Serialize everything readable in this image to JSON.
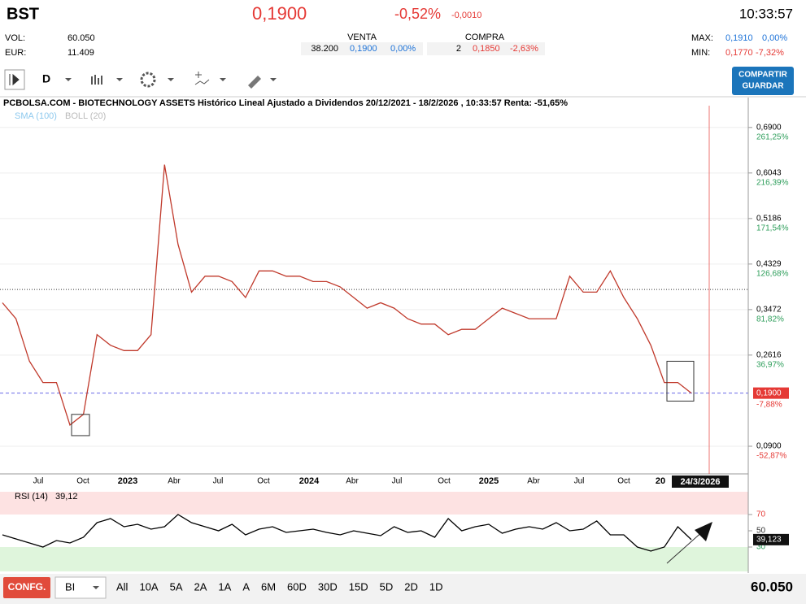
{
  "header": {
    "symbol": "BST",
    "price": "0,1900",
    "change_pct": "-0,52%",
    "change_abs": "-0,0010",
    "time": "10:33:57"
  },
  "stats": {
    "vol_label": "VOL:",
    "vol": "60.050",
    "eur_label": "EUR:",
    "eur": "11.409"
  },
  "venta": {
    "label": "VENTA",
    "qty": "38.200",
    "price": "0,1900",
    "pct": "0,00%"
  },
  "compra": {
    "label": "COMPRA",
    "qty": "2",
    "price": "0,1850",
    "pct": "-2,63%"
  },
  "max": {
    "label": "MAX:",
    "value": "0,1910",
    "pct": "0,00%"
  },
  "min": {
    "label": "MIN:",
    "value": "0,1770",
    "pct": "-7,32%"
  },
  "toolbar": {
    "period": "D",
    "share": "COMPARTIR",
    "save": "GUARDAR"
  },
  "chart_data": [
    {
      "type": "line",
      "title": "PCBOLSA.COM - BIOTECHNOLOGY ASSETS Histórico Lineal Ajustado a Dividendos 20/12/2021 - 18/2/2026 , 10:33:57 Renta: -51,65%",
      "indicators": [
        "SMA (100)",
        "BOLL (20)"
      ],
      "ylim": [
        0.038,
        0.731
      ],
      "yticks": [
        {
          "value": 0.69,
          "label": "0,6900"
        },
        {
          "value": 0.6043,
          "label": "0,6043"
        },
        {
          "value": 0.5186,
          "label": "0,5186"
        },
        {
          "value": 0.4329,
          "label": "0,4329"
        },
        {
          "value": 0.3472,
          "label": "0,3472"
        },
        {
          "value": 0.2616,
          "label": "0,2616"
        },
        {
          "value": 0.09,
          "label": "0,0900"
        }
      ],
      "ytick_pcts": [
        "261,25%",
        "216,39%",
        "171,54%",
        "126,68%",
        "81,82%",
        "36,97%",
        "-52,87%"
      ],
      "current": {
        "value": 0.19,
        "label": "0,1900",
        "pct": "-7,88%"
      },
      "level_line": 0.385,
      "x_labels": [
        "Jul",
        "Oct",
        "2023",
        "Abr",
        "Jul",
        "Oct",
        "2024",
        "Abr",
        "Jul",
        "Oct",
        "2025",
        "Abr",
        "Jul",
        "Oct",
        "20"
      ],
      "cursor_date": "24/3/2026",
      "series": [
        {
          "name": "BST",
          "color": "#c0392b",
          "values": [
            0.36,
            0.33,
            0.25,
            0.21,
            0.21,
            0.13,
            0.15,
            0.3,
            0.28,
            0.27,
            0.27,
            0.3,
            0.62,
            0.47,
            0.38,
            0.41,
            0.41,
            0.4,
            0.37,
            0.42,
            0.42,
            0.41,
            0.41,
            0.4,
            0.4,
            0.39,
            0.37,
            0.35,
            0.36,
            0.35,
            0.33,
            0.32,
            0.32,
            0.3,
            0.31,
            0.31,
            0.33,
            0.35,
            0.34,
            0.33,
            0.33,
            0.33,
            0.41,
            0.38,
            0.38,
            0.42,
            0.37,
            0.33,
            0.28,
            0.21,
            0.21,
            0.19
          ]
        }
      ]
    },
    {
      "type": "line",
      "title": "RSI (14)",
      "last_label": "39,12",
      "ylim": [
        0,
        100
      ],
      "yticks": [
        30,
        50,
        70
      ],
      "value_label": "39,123",
      "series": [
        {
          "name": "RSI",
          "color": "#000000",
          "values": [
            45,
            40,
            35,
            30,
            38,
            35,
            42,
            60,
            65,
            55,
            58,
            52,
            55,
            70,
            60,
            55,
            50,
            58,
            45,
            52,
            55,
            48,
            50,
            52,
            48,
            45,
            50,
            47,
            44,
            55,
            48,
            50,
            42,
            65,
            50,
            55,
            58,
            47,
            52,
            55,
            52,
            60,
            50,
            52,
            62,
            45,
            45,
            30,
            25,
            30,
            55,
            39.12
          ]
        }
      ]
    }
  ],
  "footer": {
    "config": "CONFG.",
    "mode": "BI",
    "ranges": [
      "All",
      "10A",
      "5A",
      "2A",
      "1A",
      "A",
      "6M",
      "60D",
      "30D",
      "15D",
      "5D",
      "2D",
      "1D"
    ],
    "volume": "60.050"
  }
}
